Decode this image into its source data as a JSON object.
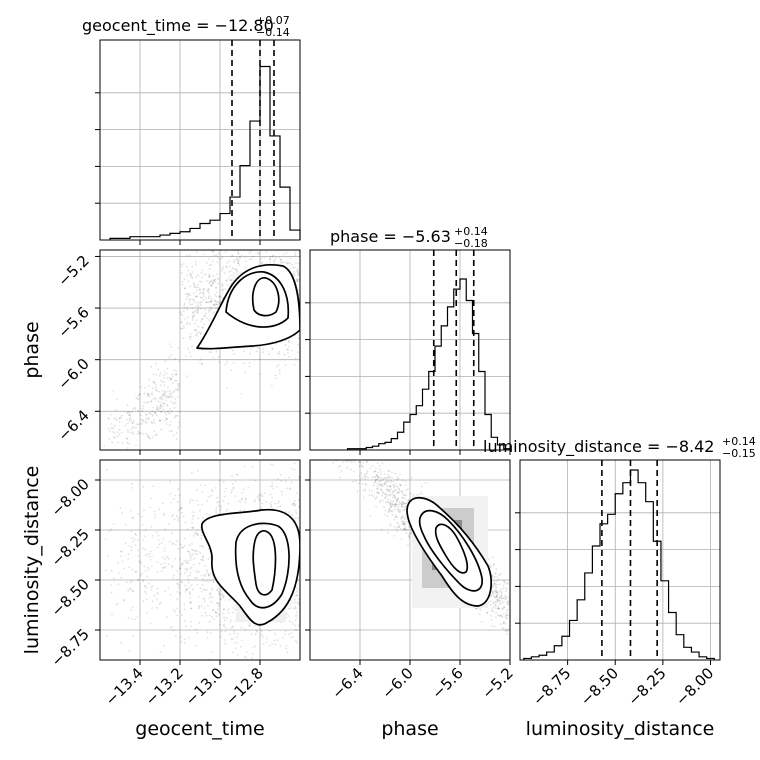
{
  "chart_data": [
    {
      "type": "histogram",
      "parameter": "geocent_time",
      "title": {
        "text": "geocent_time = −12.80",
        "plus": "+0.07",
        "minus": "−0.14"
      },
      "xlim": [
        -13.6,
        -12.6
      ],
      "xticks": [
        -13.4,
        -13.2,
        -13.0,
        -12.8
      ],
      "xtick_labels": [
        "−13.4",
        "−13.2",
        "−13.0",
        "−12.8"
      ],
      "xlabel": "geocent_time",
      "quantiles": [
        -12.94,
        -12.8,
        -12.73
      ],
      "bin_edges": [
        -13.55,
        -13.5,
        -13.45,
        -13.4,
        -13.35,
        -13.3,
        -13.25,
        -13.2,
        -13.15,
        -13.1,
        -13.05,
        -13.0,
        -12.95,
        -12.9,
        -12.85,
        -12.8,
        -12.75,
        -12.7,
        -12.65,
        -12.6
      ],
      "counts": [
        1,
        1,
        2,
        2,
        2,
        3,
        4,
        5,
        7,
        10,
        12,
        16,
        26,
        45,
        72,
        105,
        63,
        32,
        6
      ],
      "ymax": 115,
      "grid": true
    },
    {
      "type": "scatter_contour",
      "x_parameter": "geocent_time",
      "y_parameter": "phase",
      "ylabel": "phase",
      "xlim": [
        -13.6,
        -12.6
      ],
      "ylim": [
        -6.7,
        -5.15
      ],
      "yticks": [
        -6.4,
        -6.0,
        -5.6,
        -5.2
      ],
      "ytick_labels": [
        "−6.4",
        "−6.0",
        "−5.6",
        "−5.2"
      ],
      "density_peak": [
        -12.78,
        -5.53
      ],
      "contour_levels": 3,
      "grid": true
    },
    {
      "type": "histogram",
      "parameter": "phase",
      "title": {
        "text": "phase = −5.63",
        "plus": "+0.14",
        "minus": "−0.18"
      },
      "xlim": [
        -6.8,
        -5.2
      ],
      "xticks": [
        -6.4,
        -6.0,
        -5.6,
        -5.2
      ],
      "xtick_labels": [
        "−6.4",
        "−6.0",
        "−5.6",
        "−5.2"
      ],
      "xlabel": "phase",
      "quantiles": [
        -5.81,
        -5.63,
        -5.49
      ],
      "bin_edges": [
        -6.5,
        -6.45,
        -6.4,
        -6.35,
        -6.3,
        -6.25,
        -6.2,
        -6.15,
        -6.1,
        -6.05,
        -6.0,
        -5.95,
        -5.9,
        -5.85,
        -5.8,
        -5.75,
        -5.7,
        -5.65,
        -5.6,
        -5.55,
        -5.5,
        -5.45,
        -5.4,
        -5.35,
        -5.3,
        -5.25,
        -5.2
      ],
      "counts": [
        1,
        1,
        1,
        2,
        3,
        5,
        6,
        9,
        14,
        22,
        28,
        35,
        48,
        62,
        82,
        98,
        113,
        127,
        135,
        118,
        92,
        62,
        28,
        10,
        4,
        1
      ],
      "ymax": 150,
      "grid": true
    },
    {
      "type": "scatter_contour",
      "x_parameter": "geocent_time",
      "y_parameter": "luminosity_distance",
      "ylabel": "luminosity_distance",
      "xlim": [
        -13.6,
        -12.6
      ],
      "ylim": [
        -8.9,
        -7.9
      ],
      "yticks": [
        -8.75,
        -8.5,
        -8.25,
        -8.0
      ],
      "ytick_labels": [
        "−8.75",
        "−8.50",
        "−8.25",
        "−8.00"
      ],
      "density_peak": [
        -12.78,
        -8.42
      ],
      "contour_levels": 3,
      "grid": true
    },
    {
      "type": "scatter_contour",
      "x_parameter": "phase",
      "y_parameter": "luminosity_distance",
      "xlim": [
        -6.8,
        -5.2
      ],
      "ylim": [
        -8.9,
        -7.9
      ],
      "density_peak": [
        -5.63,
        -8.42
      ],
      "contour_levels": 3,
      "grid": true
    },
    {
      "type": "histogram",
      "parameter": "luminosity_distance",
      "title": {
        "text": "luminosity_distance = −8.42",
        "plus": "+0.14",
        "minus": "−0.15"
      },
      "xlim": [
        -9.0,
        -7.95
      ],
      "xticks": [
        -8.75,
        -8.5,
        -8.25,
        -8.0
      ],
      "xtick_labels": [
        "−8.75",
        "−8.50",
        "−8.25",
        "−8.00"
      ],
      "xlabel": "luminosity_distance",
      "quantiles": [
        -8.57,
        -8.42,
        -8.28
      ],
      "bin_edges": [
        -8.98,
        -8.94,
        -8.9,
        -8.86,
        -8.82,
        -8.78,
        -8.74,
        -8.7,
        -8.66,
        -8.62,
        -8.58,
        -8.54,
        -8.5,
        -8.46,
        -8.42,
        -8.38,
        -8.34,
        -8.3,
        -8.26,
        -8.22,
        -8.18,
        -8.14,
        -8.1,
        -8.06,
        -8.02,
        -7.98
      ],
      "counts": [
        1,
        2,
        3,
        5,
        9,
        15,
        25,
        38,
        55,
        72,
        86,
        92,
        105,
        112,
        120,
        112,
        100,
        75,
        50,
        30,
        16,
        8,
        5,
        2,
        1
      ],
      "ymax": 120,
      "grid": true
    }
  ]
}
